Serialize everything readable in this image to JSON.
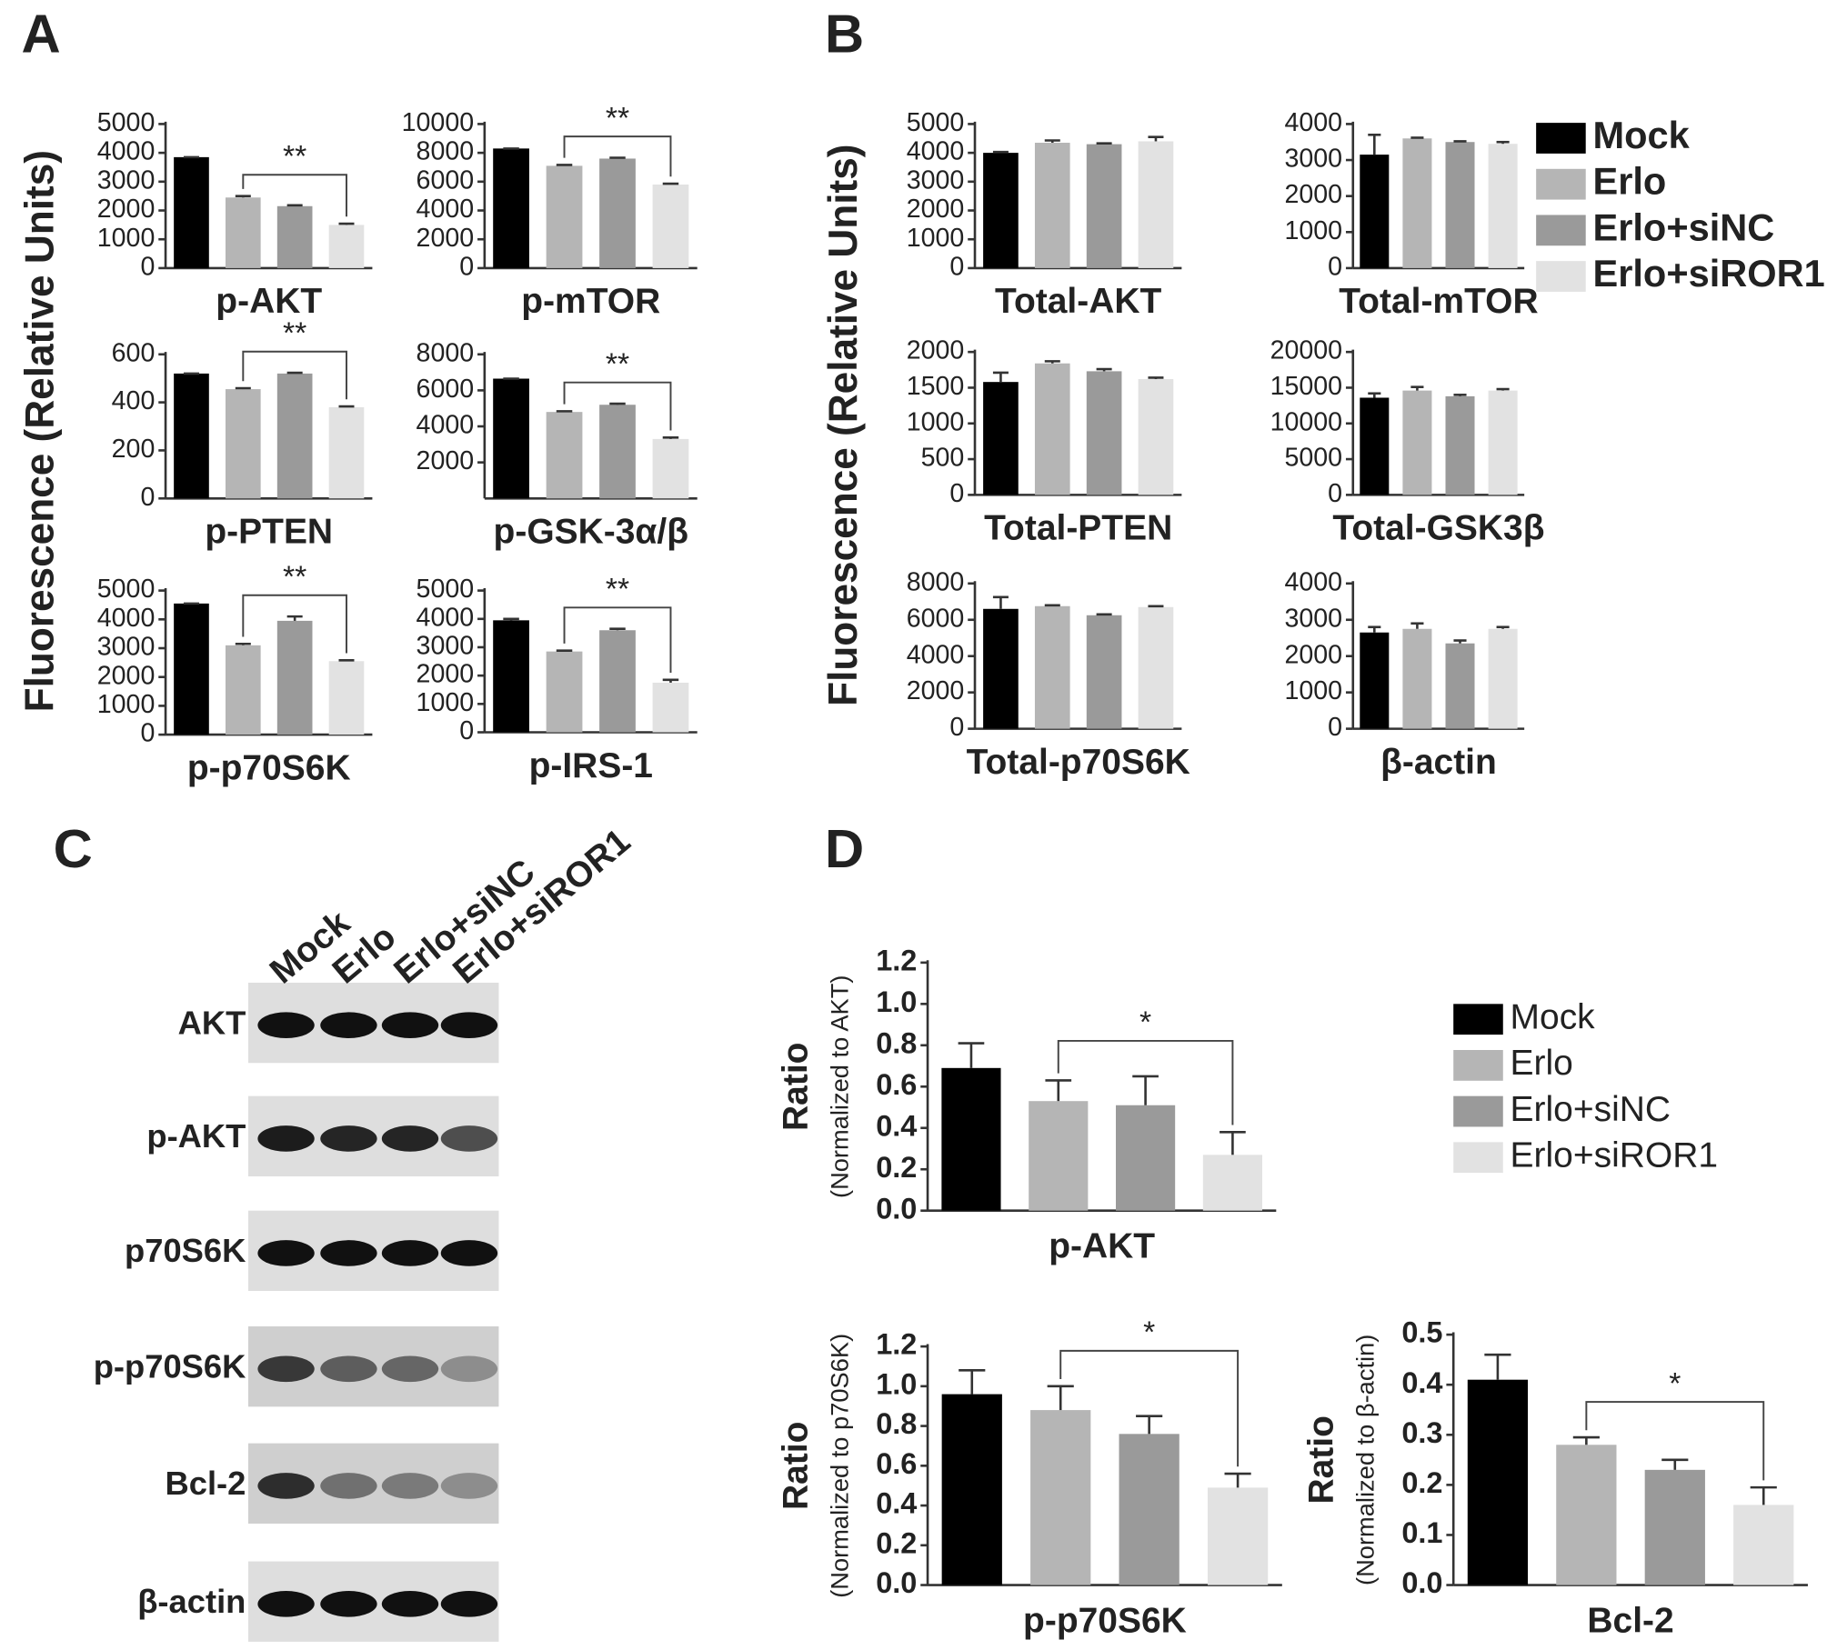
{
  "panel_labels": [
    "A",
    "B",
    "C",
    "D"
  ],
  "fluorescence_ylabel": "Fluorescence (Relative Units)",
  "legend": {
    "names": [
      "Mock",
      "Erlo",
      "Erlo+siNC",
      "Erlo+siROR1"
    ],
    "colors": [
      "#000000",
      "#b5b5b5",
      "#9a9a9a",
      "#e2e2e2"
    ]
  },
  "blot": {
    "rows": [
      "AKT",
      "p-AKT",
      "p70S6K",
      "p-p70S6K",
      "Bcl-2",
      "β-actin"
    ]
  },
  "chart_data": [
    {
      "type": "bar",
      "xlabel": "p-AKT",
      "values": [
        3850,
        2450,
        2150,
        1500
      ],
      "errors": [
        0,
        50,
        30,
        40
      ],
      "ylim": [
        0,
        5000
      ],
      "yticks": [
        0,
        1000,
        2000,
        3000,
        4000,
        5000
      ],
      "annotation": "**"
    },
    {
      "type": "bar",
      "xlabel": "p-mTOR",
      "values": [
        8300,
        7100,
        7600,
        5800
      ],
      "errors": [
        0,
        60,
        60,
        60
      ],
      "ylim": [
        0,
        10000
      ],
      "yticks": [
        0,
        2000,
        4000,
        6000,
        8000,
        10000
      ],
      "annotation": "**"
    },
    {
      "type": "bar",
      "xlabel": "p-PTEN",
      "values": [
        520,
        455,
        520,
        380
      ],
      "errors": [
        0,
        4,
        3,
        3
      ],
      "ylim": [
        0,
        600
      ],
      "yticks": [
        0,
        200,
        400,
        600
      ],
      "annotation": "**"
    },
    {
      "type": "bar",
      "xlabel": "p-GSK-3α/β",
      "values": [
        6650,
        4800,
        5200,
        3300
      ],
      "errors": [
        0,
        40,
        60,
        80
      ],
      "ylim": [
        0,
        8000
      ],
      "yticks": [
        2000,
        4000,
        6000,
        8000
      ],
      "annotation": "**"
    },
    {
      "type": "bar",
      "xlabel": "p-p70S6K",
      "values": [
        4550,
        3100,
        3950,
        2550
      ],
      "errors": [
        0,
        50,
        150,
        30
      ],
      "ylim": [
        0,
        5000
      ],
      "yticks": [
        0,
        1000,
        2000,
        3000,
        4000,
        5000
      ],
      "annotation": "**"
    },
    {
      "type": "bar",
      "xlabel": "p-IRS-1",
      "values": [
        3950,
        2850,
        3600,
        1750
      ],
      "errors": [
        50,
        30,
        50,
        100
      ],
      "ylim": [
        0,
        5000
      ],
      "yticks": [
        0,
        1000,
        2000,
        3000,
        4000,
        5000
      ],
      "annotation": "**"
    },
    {
      "type": "bar",
      "xlabel": "Total-AKT",
      "values": [
        4000,
        4350,
        4300,
        4400
      ],
      "errors": [
        30,
        80,
        30,
        150
      ],
      "ylim": [
        0,
        5000
      ],
      "yticks": [
        0,
        1000,
        2000,
        3000,
        4000,
        5000
      ]
    },
    {
      "type": "bar",
      "xlabel": "Total-mTOR",
      "values": [
        3150,
        3600,
        3500,
        3450
      ],
      "errors": [
        550,
        20,
        20,
        50
      ],
      "ylim": [
        0,
        4000
      ],
      "yticks": [
        0,
        1000,
        2000,
        3000,
        4000
      ]
    },
    {
      "type": "bar",
      "xlabel": "Total-PTEN",
      "values": [
        1580,
        1840,
        1730,
        1620
      ],
      "errors": [
        130,
        30,
        30,
        20
      ],
      "ylim": [
        0,
        2000
      ],
      "yticks": [
        0,
        500,
        1000,
        1500,
        2000
      ]
    },
    {
      "type": "bar",
      "xlabel": "Total-GSK3β",
      "values": [
        13600,
        14600,
        13800,
        14600
      ],
      "errors": [
        600,
        500,
        200,
        200
      ],
      "ylim": [
        0,
        20000
      ],
      "yticks": [
        0,
        5000,
        10000,
        15000,
        20000
      ]
    },
    {
      "type": "bar",
      "xlabel": "Total-p70S6K",
      "values": [
        6600,
        6750,
        6250,
        6700
      ],
      "errors": [
        650,
        50,
        50,
        50
      ],
      "ylim": [
        0,
        8000
      ],
      "yticks": [
        0,
        2000,
        4000,
        6000,
        8000
      ]
    },
    {
      "type": "bar",
      "xlabel": "β-actin",
      "values": [
        2650,
        2750,
        2350,
        2750
      ],
      "errors": [
        150,
        150,
        80,
        50
      ],
      "ylim": [
        0,
        4000
      ],
      "yticks": [
        0,
        1000,
        2000,
        3000,
        4000
      ]
    },
    {
      "type": "bar",
      "xlabel": "p-AKT",
      "ylabel": [
        "Ratio",
        "(Normalized to AKT)"
      ],
      "values": [
        0.69,
        0.53,
        0.51,
        0.27
      ],
      "errors": [
        0.12,
        0.1,
        0.14,
        0.11
      ],
      "ylim": [
        0,
        1.2
      ],
      "yticks": [
        {
          "value": 0,
          "label": "0.0"
        },
        0.2,
        0.4,
        0.6,
        0.8,
        {
          "value": 1,
          "label": "1.0"
        },
        1.2
      ],
      "annotation": "*"
    },
    {
      "type": "bar",
      "xlabel": "p-p70S6K",
      "ylabel": [
        "Ratio",
        "(Normalized to p70S6K)"
      ],
      "values": [
        0.96,
        0.88,
        0.76,
        0.49
      ],
      "errors": [
        0.12,
        0.12,
        0.09,
        0.07
      ],
      "ylim": [
        0,
        1.2
      ],
      "yticks": [
        {
          "value": 0,
          "label": "0.0"
        },
        0.2,
        0.4,
        0.6,
        0.8,
        {
          "value": 1,
          "label": "1.0"
        },
        1.2
      ],
      "annotation": "*"
    },
    {
      "type": "bar",
      "xlabel": "Bcl-2",
      "ylabel": [
        "Ratio",
        "(Normalized to β-actin)"
      ],
      "values": [
        0.41,
        0.28,
        0.23,
        0.16
      ],
      "errors": [
        0.05,
        0.015,
        0.02,
        0.035
      ],
      "ylim": [
        0,
        0.5
      ],
      "yticks": [
        {
          "value": 0,
          "label": "0.0"
        },
        0.1,
        0.2,
        0.3,
        0.4,
        0.5
      ],
      "annotation": "*"
    }
  ]
}
